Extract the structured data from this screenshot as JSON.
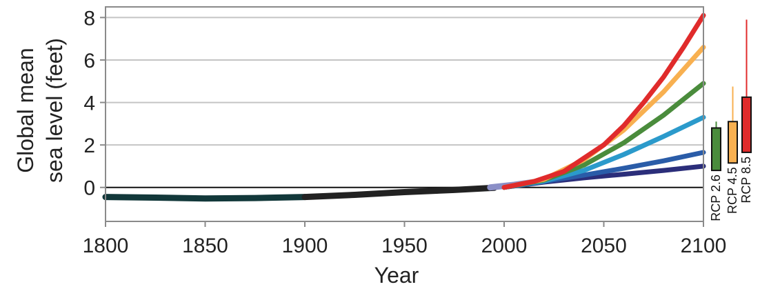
{
  "chart_data": {
    "type": "line",
    "title": "",
    "xlabel": "Year",
    "ylabel_lines": [
      "Global mean",
      "sea level (feet)"
    ],
    "xlim": [
      1800,
      2100
    ],
    "ylim": [
      -1.6,
      8.5
    ],
    "x_ticks": [
      1800,
      1850,
      1900,
      1950,
      2000,
      2050,
      2100
    ],
    "y_ticks": [
      0,
      2,
      4,
      6,
      8
    ],
    "grid": "horizontal",
    "zero_line": true,
    "historical": [
      {
        "color": "#12383a",
        "points": [
          [
            1800,
            -0.45
          ],
          [
            1825,
            -0.48
          ],
          [
            1850,
            -0.52
          ],
          [
            1875,
            -0.5
          ],
          [
            1900,
            -0.45
          ]
        ]
      },
      {
        "color": "#222222",
        "points": [
          [
            1900,
            -0.45
          ],
          [
            1925,
            -0.35
          ],
          [
            1950,
            -0.22
          ],
          [
            1975,
            -0.12
          ],
          [
            1995,
            -0.02
          ]
        ]
      },
      {
        "color": "#8b8fc7",
        "points": [
          [
            1993,
            0.0
          ],
          [
            2005,
            0.12
          ],
          [
            2015,
            0.25
          ]
        ]
      }
    ],
    "series": [
      {
        "color": "#2b2e7a",
        "points": [
          [
            2000,
            0.0
          ],
          [
            2020,
            0.25
          ],
          [
            2040,
            0.45
          ],
          [
            2060,
            0.62
          ],
          [
            2080,
            0.8
          ],
          [
            2100,
            1.0
          ]
        ]
      },
      {
        "color": "#2a5ca8",
        "points": [
          [
            2000,
            0.0
          ],
          [
            2020,
            0.28
          ],
          [
            2040,
            0.58
          ],
          [
            2060,
            0.9
          ],
          [
            2080,
            1.25
          ],
          [
            2100,
            1.65
          ]
        ]
      },
      {
        "color": "#2b9acb",
        "points": [
          [
            2000,
            0.0
          ],
          [
            2020,
            0.3
          ],
          [
            2040,
            0.8
          ],
          [
            2060,
            1.55
          ],
          [
            2080,
            2.4
          ],
          [
            2100,
            3.3
          ]
        ]
      },
      {
        "color": "#4a8c3c",
        "points": [
          [
            2000,
            0.0
          ],
          [
            2020,
            0.35
          ],
          [
            2040,
            1.05
          ],
          [
            2060,
            2.1
          ],
          [
            2080,
            3.4
          ],
          [
            2100,
            4.9
          ]
        ]
      },
      {
        "color": "#f8b050",
        "points": [
          [
            2000,
            0.0
          ],
          [
            2020,
            0.38
          ],
          [
            2040,
            1.3
          ],
          [
            2060,
            2.7
          ],
          [
            2080,
            4.5
          ],
          [
            2100,
            6.6
          ]
        ]
      },
      {
        "color": "#e02b2b",
        "points": [
          [
            2000,
            0.0
          ],
          [
            2015,
            0.28
          ],
          [
            2030,
            0.75
          ],
          [
            2050,
            2.0
          ],
          [
            2060,
            2.9
          ],
          [
            2070,
            4.0
          ],
          [
            2080,
            5.2
          ],
          [
            2090,
            6.6
          ],
          [
            2100,
            8.1
          ]
        ]
      }
    ],
    "boxes": [
      {
        "label": "RCP 2.6",
        "color": "#4a8c3c",
        "low": 0.8,
        "high": 2.8,
        "whisker_high": 3.1
      },
      {
        "label": "RCP 4.5",
        "color": "#f8b050",
        "low": 1.15,
        "high": 3.1,
        "whisker_high": 4.75
      },
      {
        "label": "RCP 8.5",
        "color": "#e02b2b",
        "low": 1.65,
        "high": 4.25,
        "whisker_high": 7.9
      }
    ]
  }
}
